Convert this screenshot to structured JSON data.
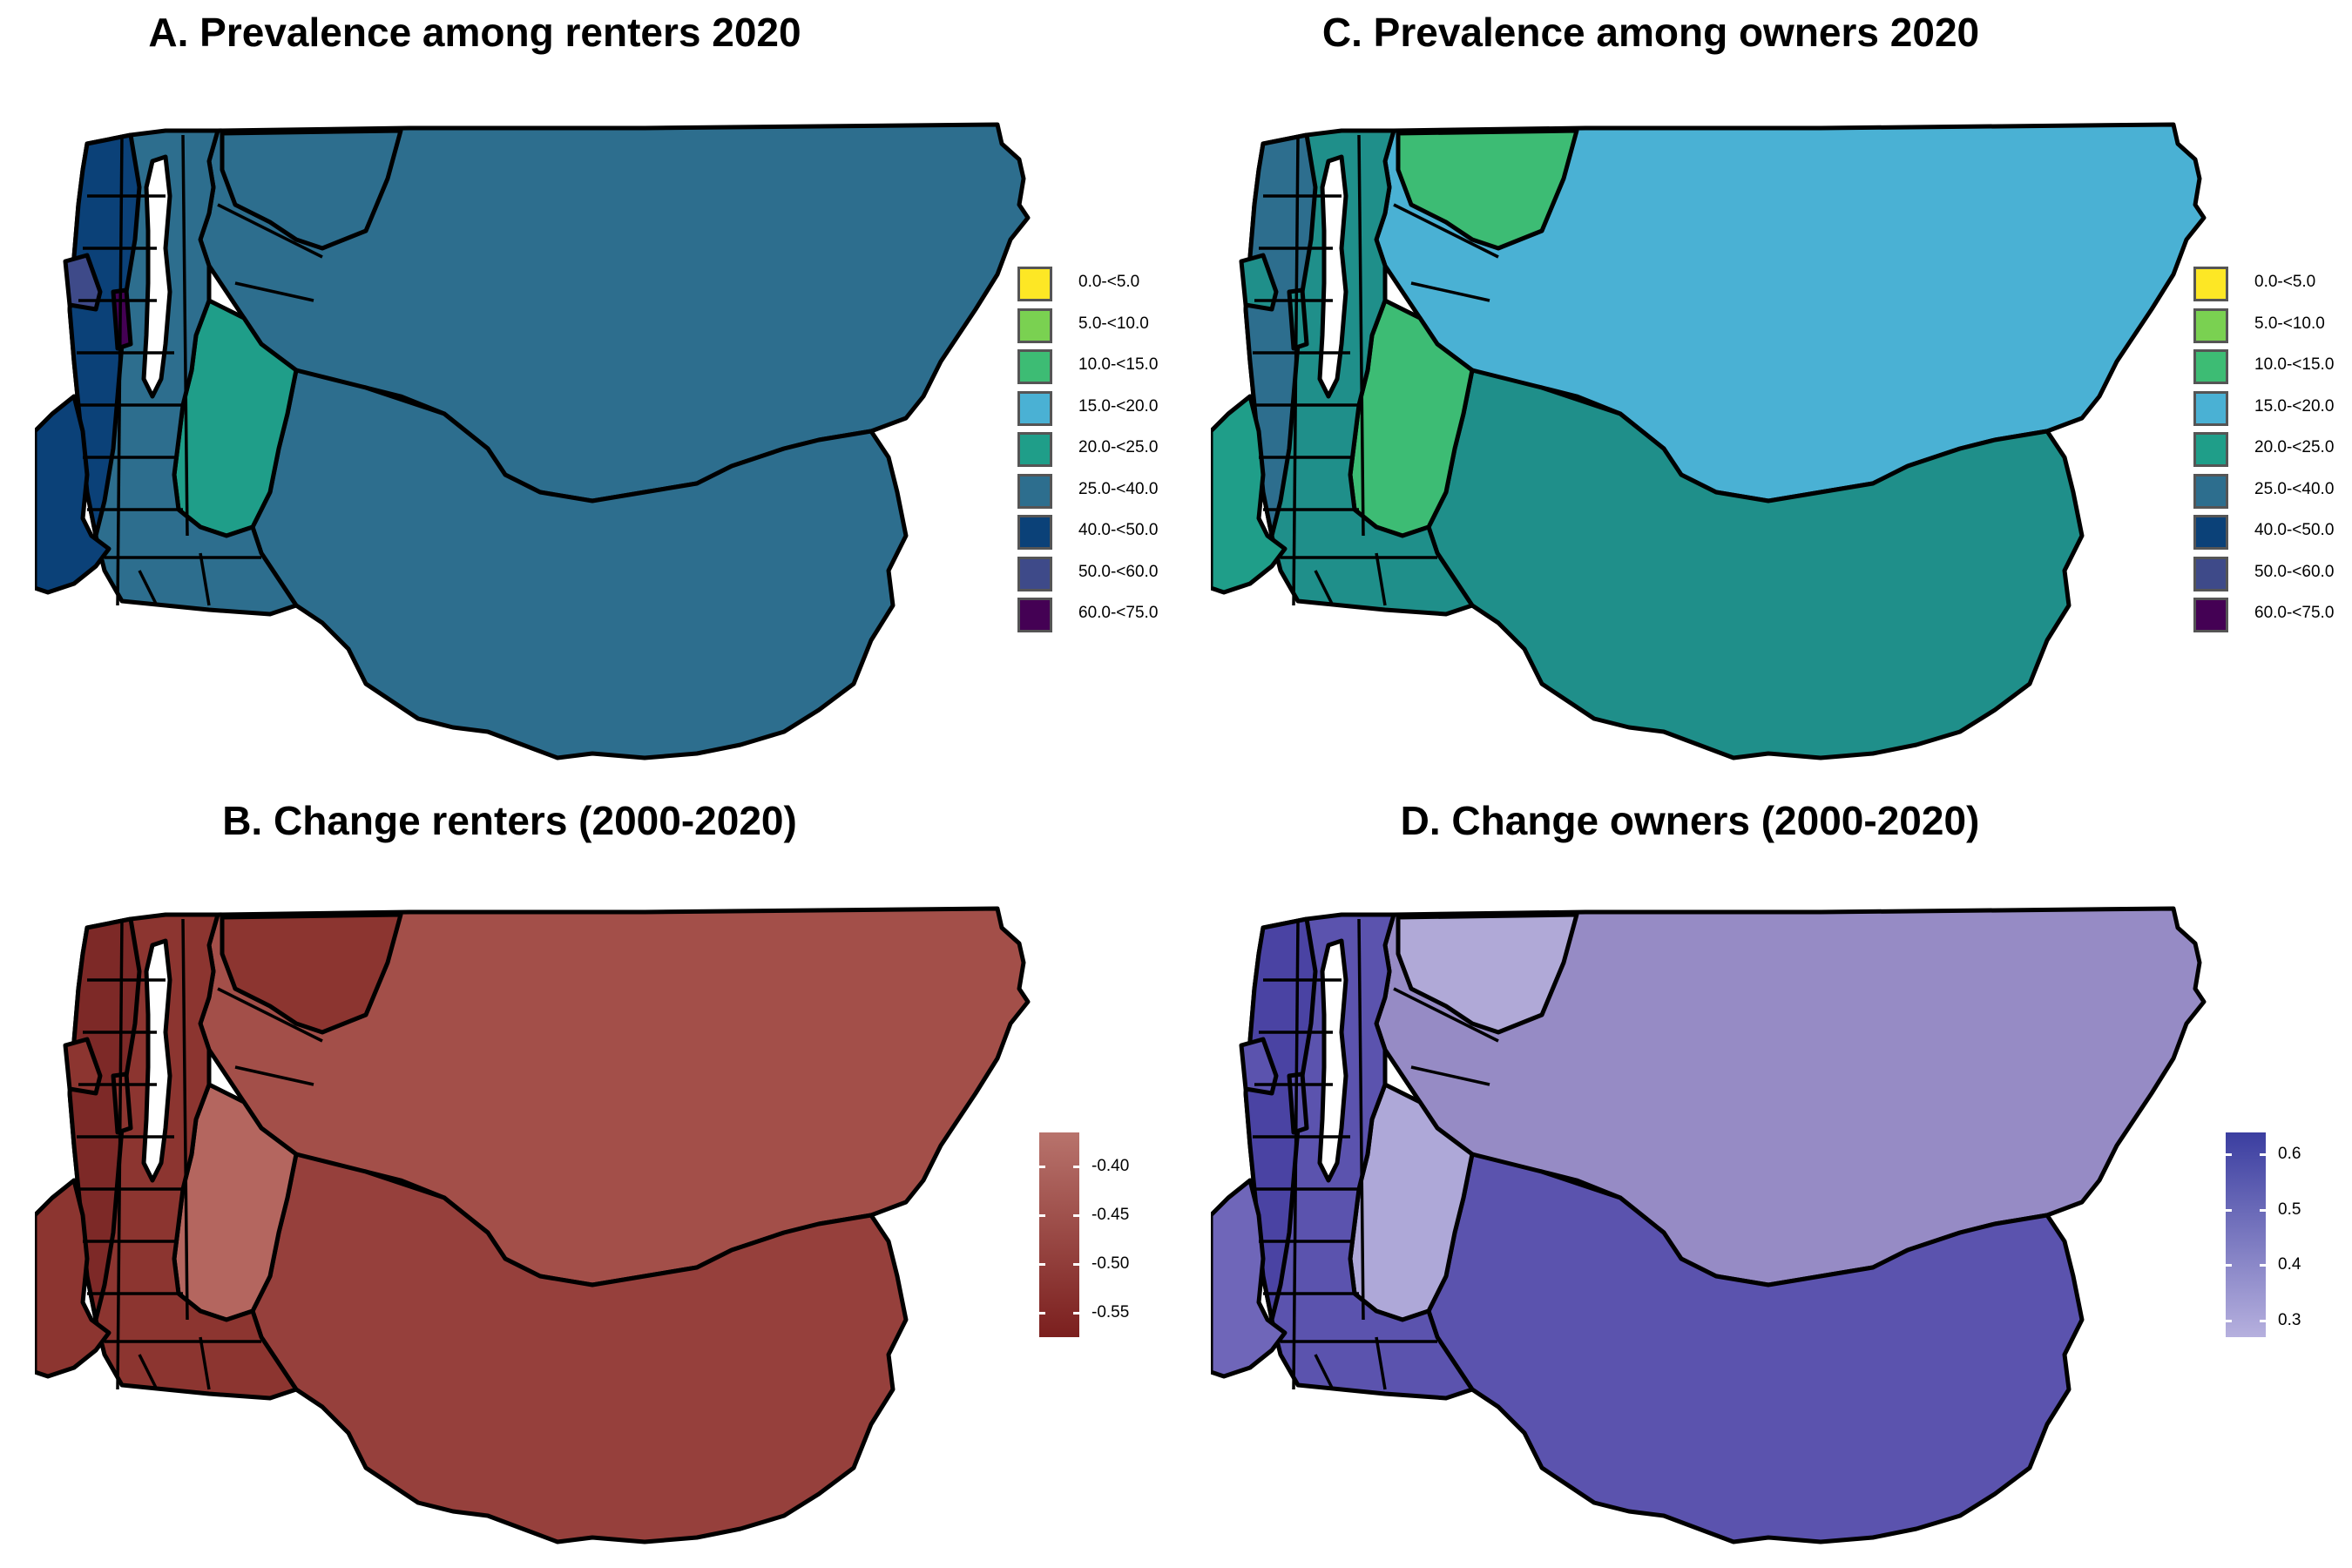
{
  "panels": {
    "a": {
      "title": "A. Prevalence among renters 2020",
      "fill": {
        "large": "#2d6e8e",
        "central": "#1f9e89",
        "west": "#2d6e8e",
        "dense": "#0b4178",
        "accent1": "#3e4a89",
        "accent2": "#440154",
        "island": "#0b4178"
      }
    },
    "b": {
      "title": "B. Change renters (2000-2020)",
      "fill": {
        "large": "#a34f49",
        "central": "#b4665f",
        "west": "#8c3530",
        "dense": "#7d2927",
        "south": "#96403c",
        "island": "#8c3530"
      }
    },
    "c": {
      "title": "C. Prevalence among owners 2020",
      "fill": {
        "large": "#4ab1d4",
        "central": "#3dbc74",
        "west": "#1f8f8a",
        "dense": "#2d6e8e",
        "north": "#3dbc74",
        "island": "#1f9e89"
      }
    },
    "d": {
      "title": "D. Change owners (2000-2020)",
      "fill": {
        "large": "#968bc5",
        "central": "#aea8d8",
        "west": "#5b53ae",
        "dense": "#4a43a3",
        "north": "#b0a9d7",
        "island": "#6f66b9"
      }
    }
  },
  "legend_categorical": [
    {
      "label": "0.0-<5.0",
      "color": "#fde725"
    },
    {
      "label": "5.0-<10.0",
      "color": "#7ad151"
    },
    {
      "label": "10.0-<15.0",
      "color": "#3dbc74"
    },
    {
      "label": "15.0-<20.0",
      "color": "#4ab1d4"
    },
    {
      "label": "20.0-<25.0",
      "color": "#1f9e89"
    },
    {
      "label": "25.0-<40.0",
      "color": "#2d6e8e"
    },
    {
      "label": "40.0-<50.0",
      "color": "#0b4178"
    },
    {
      "label": "50.0-<60.0",
      "color": "#3e4a89"
    },
    {
      "label": "60.0-<75.0",
      "color": "#440154"
    }
  ],
  "legend_renters_change": {
    "ticks": [
      {
        "value": -0.4,
        "label": "-0.40"
      },
      {
        "value": -0.45,
        "label": "-0.45"
      },
      {
        "value": -0.5,
        "label": "-0.50"
      },
      {
        "value": -0.55,
        "label": "-0.55"
      }
    ],
    "range": [
      -0.575,
      -0.365
    ],
    "color_top": "#b8736c",
    "color_bottom": "#7b1f1e"
  },
  "legend_owners_change": {
    "ticks": [
      {
        "value": 0.6,
        "label": "0.6"
      },
      {
        "value": 0.5,
        "label": "0.5"
      },
      {
        "value": 0.4,
        "label": "0.4"
      },
      {
        "value": 0.3,
        "label": "0.3"
      }
    ],
    "range": [
      0.27,
      0.64
    ],
    "color_top": "#3b3ea0",
    "color_bottom": "#b6b0de"
  }
}
